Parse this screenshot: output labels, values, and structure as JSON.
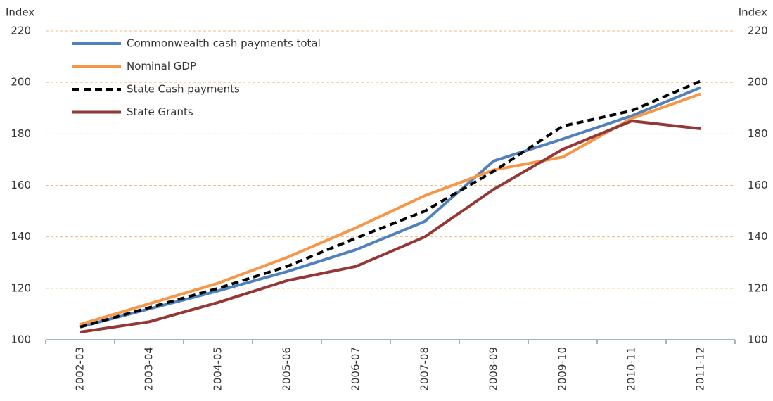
{
  "chart_data": {
    "type": "line",
    "ylabel": "Index",
    "y2label": "Index",
    "categories": [
      "2002-03",
      "2003-04",
      "2004-05",
      "2005-06",
      "2006-07",
      "2007-08",
      "2008-09",
      "2009-10",
      "2010-11",
      "2011-12"
    ],
    "series": [
      {
        "name": "Commonwealth cash payments total",
        "color": "#4f81bd",
        "dash": false,
        "values": [
          105,
          112,
          119,
          126.5,
          135,
          146,
          169.5,
          178,
          187,
          198
        ]
      },
      {
        "name": "Nominal GDP",
        "color": "#f79646",
        "dash": false,
        "values": [
          106,
          114,
          122,
          132,
          143.5,
          156,
          166,
          171,
          186,
          195.5
        ]
      },
      {
        "name": "State Cash payments",
        "color": "#000000",
        "dash": true,
        "values": [
          105,
          112.5,
          120,
          128.5,
          139.5,
          150,
          165.5,
          183,
          189,
          200.5
        ]
      },
      {
        "name": "State Grants",
        "color": "#953735",
        "dash": false,
        "values": [
          103,
          107,
          114.5,
          123,
          128.5,
          140,
          158.5,
          174,
          185,
          182
        ]
      }
    ],
    "ylim": [
      100,
      220
    ],
    "yticks": [
      100,
      120,
      140,
      160,
      180,
      200,
      220
    ],
    "y2lim": [
      100,
      220
    ],
    "y2ticks": [
      100,
      120,
      140,
      160,
      180,
      200,
      220
    ],
    "grid": true,
    "legend": "upper left"
  }
}
